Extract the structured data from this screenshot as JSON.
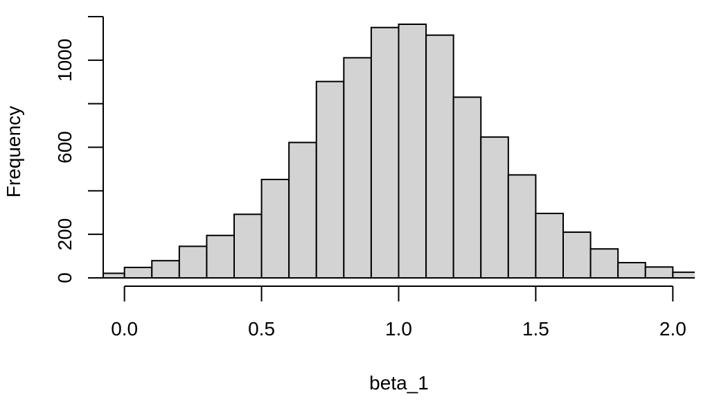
{
  "chart_data": {
    "type": "bar",
    "title": "",
    "xlabel": "beta_1",
    "ylabel": "Frequency",
    "bin_edges": [
      -0.1,
      0.0,
      0.1,
      0.2,
      0.3,
      0.4,
      0.5,
      0.6,
      0.7,
      0.8,
      0.9,
      1.0,
      1.1,
      1.2,
      1.3,
      1.4,
      1.5,
      1.6,
      1.7,
      1.8,
      1.9,
      2.0,
      2.1
    ],
    "values": [
      21,
      48,
      79,
      145,
      195,
      292,
      452,
      622,
      902,
      1011,
      1150,
      1165,
      1115,
      830,
      647,
      473,
      296,
      210,
      133,
      70,
      50,
      26
    ],
    "xlim": [
      -0.08,
      2.08
    ],
    "ylim": [
      0,
      1200
    ],
    "x_ticks": [
      0.0,
      0.5,
      1.0,
      1.5,
      2.0
    ],
    "x_tick_labels": [
      "0.0",
      "0.5",
      "1.0",
      "1.5",
      "2.0"
    ],
    "y_ticks": [
      0,
      200,
      600,
      1000
    ],
    "y_tick_labels": [
      "0",
      "200",
      "600",
      "1000"
    ],
    "y_tick_marks": [
      0,
      200,
      400,
      600,
      800,
      1000,
      1200
    ],
    "grid": false,
    "legend": "none",
    "colors": {
      "bar_fill": "#d3d3d3",
      "bar_stroke": "#000000"
    }
  }
}
